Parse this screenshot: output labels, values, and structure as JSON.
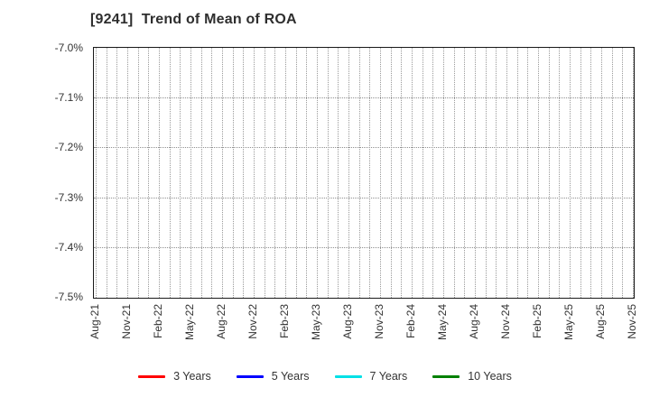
{
  "chart_data": {
    "type": "line",
    "title": "[9241]  Trend of Mean of ROA",
    "title_color": "#2e2e2e",
    "plot_empty": true,
    "grid": true,
    "grid_style": "dotted",
    "months_total": 52,
    "label_every_n_months": 3,
    "x_tick_labels": [
      "Aug-21",
      "Nov-21",
      "Feb-22",
      "May-22",
      "Aug-22",
      "Nov-22",
      "Feb-23",
      "May-23",
      "Aug-23",
      "Nov-23",
      "Feb-24",
      "May-24",
      "Aug-24",
      "Nov-24",
      "Feb-25",
      "May-25",
      "Aug-25",
      "Nov-25"
    ],
    "y_tick_labels": [
      "-7.0%",
      "-7.1%",
      "-7.2%",
      "-7.3%",
      "-7.4%",
      "-7.5%"
    ],
    "ylim": [
      -7.5,
      -7.0
    ],
    "ylabel": "",
    "xlabel": "",
    "legend_position": "bottom",
    "series": [
      {
        "name": "3 Years",
        "color": "#ff0000",
        "x": [],
        "values": []
      },
      {
        "name": "5 Years",
        "color": "#0000ff",
        "x": [],
        "values": []
      },
      {
        "name": "7 Years",
        "color": "#00e0e6",
        "x": [],
        "values": []
      },
      {
        "name": "10 Years",
        "color": "#008000",
        "x": [],
        "values": []
      }
    ]
  }
}
